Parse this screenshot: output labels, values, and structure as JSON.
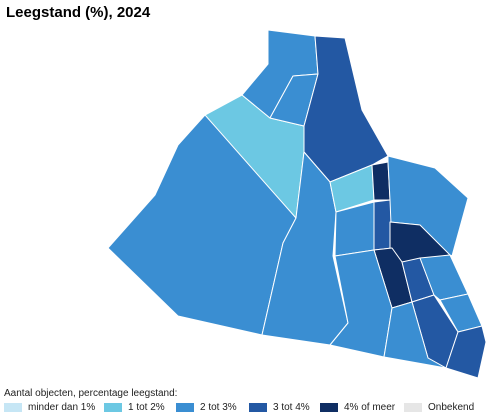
{
  "title": "Leegstand (%), 2024",
  "legend": {
    "caption": "Aantal objecten, percentage leegstand:",
    "items": [
      {
        "label": "minder dan 1%",
        "color": "#c6e6f5"
      },
      {
        "label": "1 tot 2%",
        "color": "#6cc8e3"
      },
      {
        "label": "2 tot 3%",
        "color": "#3a8ed2"
      },
      {
        "label": "3 tot 4%",
        "color": "#2358a3"
      },
      {
        "label": "4% of meer",
        "color": "#0f2e63"
      },
      {
        "label": "Onbekend",
        "color": "#e6e6e6"
      }
    ]
  },
  "regions": [
    {
      "id": "west-large",
      "class": "2 tot 3%"
    },
    {
      "id": "north-light",
      "class": "1 tot 2%"
    },
    {
      "id": "north-top",
      "class": "2 tot 3%"
    },
    {
      "id": "north-inner",
      "class": "2 tot 3%"
    },
    {
      "id": "north-dark-strip",
      "class": "3 tot 4%"
    },
    {
      "id": "central",
      "class": "2 tot 3%"
    },
    {
      "id": "center-light",
      "class": "1 tot 2%"
    },
    {
      "id": "center-darkest-small",
      "class": "4% of meer"
    },
    {
      "id": "east-upper",
      "class": "2 tot 3%"
    },
    {
      "id": "center-right-block",
      "class": "2 tot 3%"
    },
    {
      "id": "center-strip",
      "class": "3 tot 4%"
    },
    {
      "id": "east-darkest",
      "class": "4% of meer"
    },
    {
      "id": "south-darkest",
      "class": "4% of meer"
    },
    {
      "id": "south-mid",
      "class": "2 tot 3%"
    },
    {
      "id": "east-mid-dark",
      "class": "3 tot 4%"
    },
    {
      "id": "east-small-mid",
      "class": "2 tot 3%"
    },
    {
      "id": "east-light-1",
      "class": "2 tot 3%"
    },
    {
      "id": "south-dark-1",
      "class": "3 tot 4%"
    },
    {
      "id": "south-dark-2",
      "class": "3 tot 4%"
    },
    {
      "id": "south-west",
      "class": "2 tot 3%"
    }
  ]
}
